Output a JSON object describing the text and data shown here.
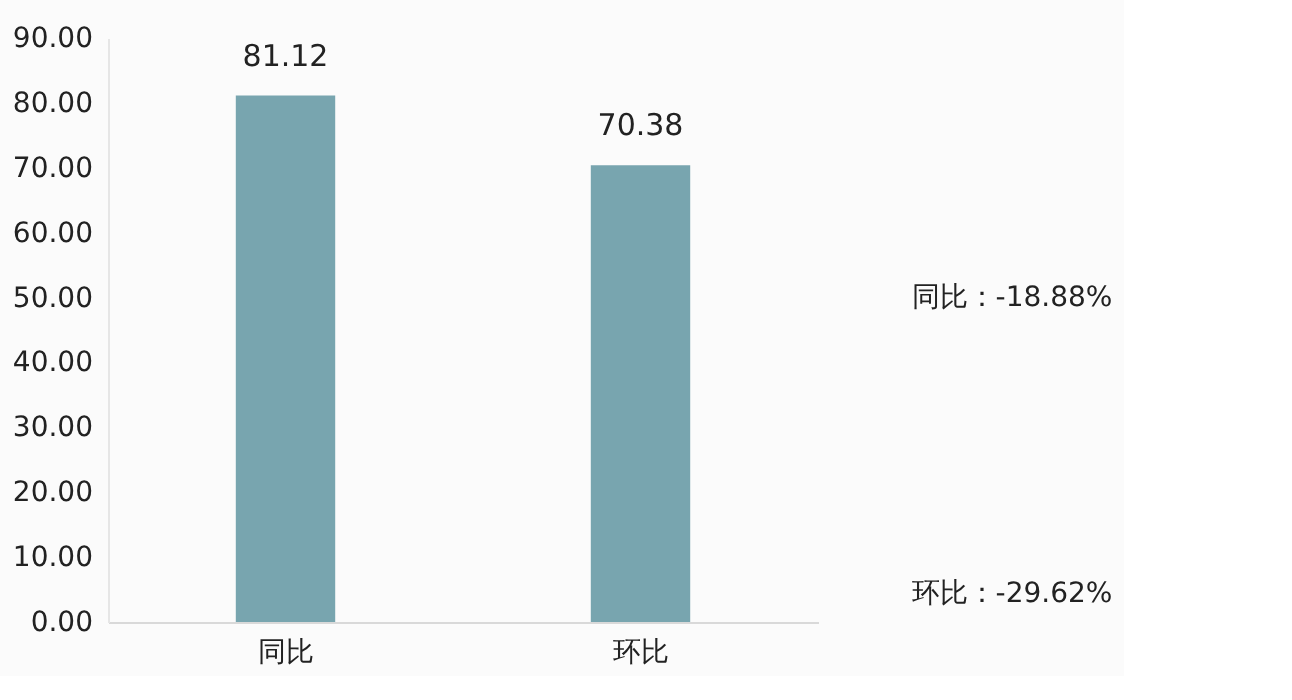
{
  "chart_data": {
    "type": "bar",
    "categories": [
      "同比",
      "环比"
    ],
    "values": [
      81.12,
      70.38
    ],
    "color": "#78a5af",
    "ylim": [
      0,
      90
    ],
    "yticks": [
      {
        "value": 0,
        "label": "0.00"
      },
      {
        "value": 10,
        "label": "10.00"
      },
      {
        "value": 20,
        "label": "20.00"
      },
      {
        "value": 30,
        "label": "30.00"
      },
      {
        "value": 40,
        "label": "40.00"
      },
      {
        "value": 50,
        "label": "50.00"
      },
      {
        "value": 60,
        "label": "60.00"
      },
      {
        "value": 70,
        "label": "70.00"
      },
      {
        "value": 80,
        "label": "80.00"
      },
      {
        "value": 90,
        "label": "90.00"
      }
    ],
    "data_labels": true,
    "grid": false,
    "annotations": [
      "同比：-18.88%",
      "环比：-29.62%"
    ]
  }
}
